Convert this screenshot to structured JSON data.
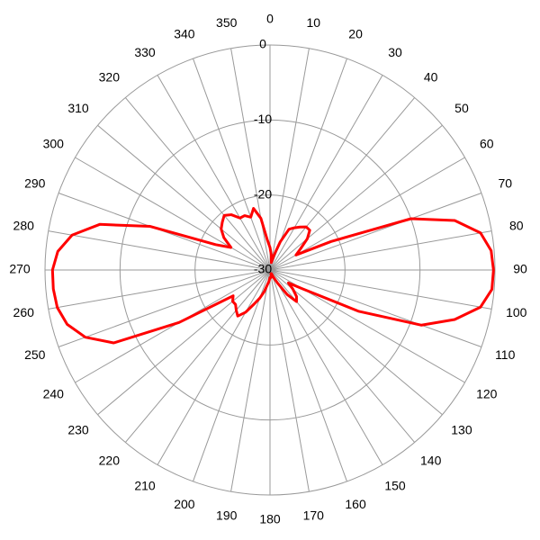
{
  "chart_data": {
    "type": "polar",
    "thetaticks": [
      0,
      10,
      20,
      30,
      40,
      50,
      60,
      70,
      80,
      90,
      100,
      110,
      120,
      130,
      140,
      150,
      160,
      170,
      180,
      190,
      200,
      210,
      220,
      230,
      240,
      250,
      260,
      270,
      280,
      290,
      300,
      310,
      320,
      330,
      340,
      350
    ],
    "rlim": [
      -30,
      0
    ],
    "rticks": [
      -30,
      -20,
      -10,
      0
    ],
    "grid": true,
    "series": [
      {
        "color": "#ff0000",
        "x": [
          0,
          5,
          10,
          15,
          20,
          25,
          30,
          35,
          40,
          45,
          50,
          55,
          60,
          65,
          70,
          75,
          80,
          85,
          90,
          95,
          100,
          105,
          110,
          115,
          120,
          125,
          130,
          135,
          140,
          145,
          150,
          155,
          160,
          165,
          170,
          175,
          180,
          185,
          190,
          195,
          200,
          205,
          210,
          215,
          220,
          225,
          230,
          235,
          240,
          245,
          250,
          255,
          260,
          265,
          270,
          275,
          280,
          285,
          290,
          295,
          300,
          305,
          310,
          315,
          320,
          325,
          330,
          335,
          340,
          345,
          350,
          355
        ],
        "values": [
          -27,
          -28,
          -29,
          -28,
          -26,
          -24,
          -23.5,
          -23,
          -22.5,
          -22.5,
          -23.5,
          -25,
          -26,
          -21,
          -10,
          -4.5,
          -1.5,
          -0.4,
          -0.2,
          -0.3,
          -1.5,
          -4.5,
          -8.5,
          -17,
          -25,
          -27,
          -26,
          -25,
          -24.5,
          -26,
          -28,
          -29,
          -29.5,
          -29.5,
          -29,
          -29,
          -29,
          -28.5,
          -28,
          -27,
          -26,
          -25,
          -23.5,
          -22.5,
          -23,
          -23.5,
          -23.5,
          -24,
          -16,
          -7,
          -3.8,
          -2,
          -1.2,
          -1,
          -1,
          -1.6,
          -3.2,
          -6.5,
          -13,
          -22,
          -24,
          -22.5,
          -21.5,
          -21,
          -20.5,
          -21,
          -22,
          -22,
          -22.5,
          -21.5,
          -23,
          -26
        ]
      }
    ]
  }
}
